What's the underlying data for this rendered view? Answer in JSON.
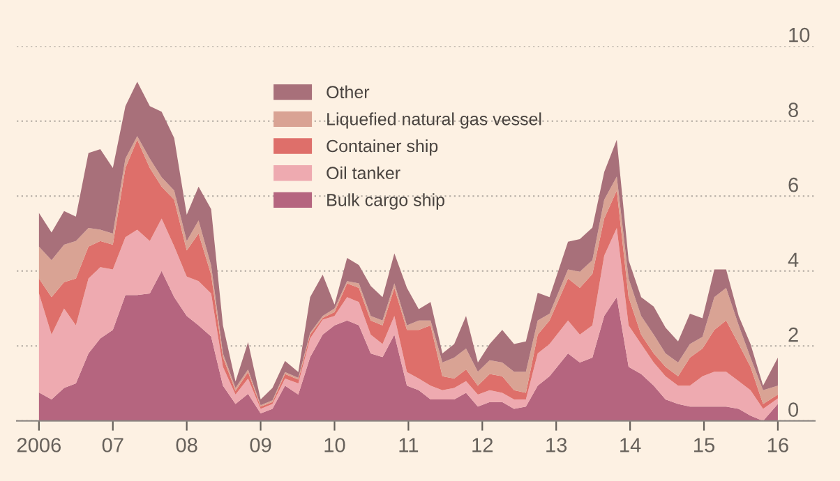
{
  "chart_data": {
    "type": "area",
    "stacked": true,
    "x": [
      2006.0,
      2006.17,
      2006.34,
      2006.5,
      2006.67,
      2006.83,
      2007.0,
      2007.17,
      2007.33,
      2007.5,
      2007.66,
      2007.83,
      2008.0,
      2008.16,
      2008.33,
      2008.49,
      2008.66,
      2008.83,
      2009.0,
      2009.16,
      2009.33,
      2009.51,
      2009.67,
      2009.84,
      2010.0,
      2010.17,
      2010.33,
      2010.49,
      2010.65,
      2010.81,
      2010.98,
      2011.14,
      2011.3,
      2011.46,
      2011.62,
      2011.78,
      2011.94,
      2012.1,
      2012.27,
      2012.43,
      2012.59,
      2012.75,
      2012.91,
      2013.16,
      2013.32,
      2013.49,
      2013.65,
      2013.82,
      2013.98,
      2014.15,
      2014.32,
      2014.48,
      2014.65,
      2014.81,
      2014.98,
      2015.14,
      2015.3,
      2015.47,
      2015.63,
      2015.8,
      2016.0
    ],
    "series": [
      {
        "name": "Bulk cargo ship",
        "color": "#b5657f",
        "values": [
          0.76,
          0.57,
          0.88,
          1.0,
          1.8,
          2.2,
          2.43,
          3.36,
          3.36,
          3.4,
          4.0,
          3.3,
          2.8,
          2.55,
          2.25,
          0.94,
          0.45,
          0.72,
          0.2,
          0.32,
          0.94,
          0.7,
          1.7,
          2.3,
          2.55,
          2.68,
          2.55,
          1.8,
          1.7,
          2.3,
          0.94,
          0.82,
          0.57,
          0.57,
          0.57,
          0.75,
          0.38,
          0.5,
          0.5,
          0.32,
          0.38,
          0.94,
          1.19,
          1.8,
          1.56,
          1.69,
          2.8,
          3.3,
          1.44,
          1.25,
          0.94,
          0.57,
          0.45,
          0.38,
          0.38,
          0.38,
          0.38,
          0.32,
          0.14,
          0.0,
          0.45
        ]
      },
      {
        "name": "Oil tanker",
        "color": "#eeaab0",
        "values": [
          2.64,
          1.73,
          2.12,
          1.55,
          2.0,
          1.9,
          1.61,
          1.54,
          1.74,
          1.4,
          1.4,
          1.36,
          1.05,
          1.18,
          1.15,
          0.5,
          0.25,
          0.41,
          0.12,
          0.13,
          0.19,
          0.3,
          0.5,
          0.4,
          0.25,
          0.62,
          0.62,
          0.5,
          0.35,
          0.5,
          0.36,
          0.31,
          0.37,
          0.25,
          0.31,
          0.31,
          0.32,
          0.32,
          0.25,
          0.25,
          0.19,
          0.86,
          0.86,
          0.88,
          0.74,
          0.86,
          1.61,
          1.85,
          1.11,
          0.8,
          0.62,
          0.62,
          0.49,
          0.56,
          0.81,
          0.93,
          0.93,
          0.74,
          0.68,
          0.32,
          0.15
        ]
      },
      {
        "name": "Container ship",
        "color": "#de6f6a",
        "values": [
          0.4,
          1.0,
          0.7,
          1.25,
          0.85,
          0.7,
          0.66,
          1.85,
          2.4,
          1.95,
          0.85,
          1.24,
          0.7,
          1.27,
          0.5,
          0.26,
          0.1,
          0.17,
          0.06,
          0.05,
          0.12,
          0.1,
          0.1,
          0.05,
          0.1,
          0.37,
          0.38,
          0.38,
          0.5,
          0.75,
          1.13,
          1.3,
          1.61,
          0.37,
          0.25,
          0.31,
          0.24,
          0.43,
          0.44,
          0.25,
          0.18,
          0.5,
          0.63,
          1.12,
          1.25,
          1.37,
          0.99,
          1.0,
          0.75,
          0.25,
          0.24,
          0.25,
          0.25,
          0.75,
          0.74,
          1.12,
          1.37,
          0.99,
          0.62,
          0.13,
          0.1
        ]
      },
      {
        "name": "Liquefied natural gas vessel",
        "color": "#d9a394",
        "values": [
          0.85,
          0.99,
          1.0,
          1.0,
          0.5,
          0.3,
          0.3,
          0.25,
          0.1,
          0.25,
          0.25,
          0.25,
          0.25,
          0.35,
          0.25,
          0.1,
          0.08,
          0.07,
          0.04,
          0.05,
          0.05,
          0.05,
          0.05,
          0.05,
          0.1,
          0.06,
          0.12,
          0.12,
          0.13,
          0.12,
          0.12,
          0.25,
          0.13,
          0.37,
          0.56,
          0.56,
          0.37,
          0.37,
          0.37,
          0.49,
          0.56,
          0.38,
          0.18,
          0.24,
          0.43,
          0.37,
          0.5,
          0.37,
          0.5,
          0.5,
          0.5,
          0.36,
          0.37,
          0.36,
          0.31,
          0.87,
          0.87,
          0.5,
          0.25,
          0.37,
          0.24
        ]
      },
      {
        "name": "Other",
        "color": "#a8707a",
        "values": [
          0.9,
          0.74,
          0.9,
          0.65,
          2.0,
          2.15,
          1.75,
          1.4,
          1.45,
          1.4,
          1.75,
          1.4,
          0.7,
          0.9,
          1.5,
          0.75,
          0.17,
          0.73,
          0.15,
          0.33,
          0.3,
          0.15,
          0.95,
          1.1,
          0.1,
          0.62,
          0.49,
          0.8,
          0.62,
          0.8,
          1.0,
          0.3,
          0.49,
          0.24,
          0.36,
          0.87,
          0.25,
          0.43,
          0.87,
          0.74,
          0.81,
          0.74,
          0.44,
          0.74,
          0.87,
          0.87,
          0.74,
          0.98,
          0.49,
          0.5,
          0.75,
          0.69,
          0.56,
          0.81,
          0.5,
          0.74,
          0.49,
          0.25,
          0.36,
          0.12,
          0.75
        ]
      }
    ],
    "xlim": [
      2005.7,
      2016.5
    ],
    "xticks": [
      {
        "value": 2006,
        "label": "2006"
      },
      {
        "value": 2007,
        "label": "07"
      },
      {
        "value": 2008,
        "label": "08"
      },
      {
        "value": 2009,
        "label": "09"
      },
      {
        "value": 2010,
        "label": "10"
      },
      {
        "value": 2011,
        "label": "11"
      },
      {
        "value": 2012,
        "label": "12"
      },
      {
        "value": 2013,
        "label": "13"
      },
      {
        "value": 2014,
        "label": "14"
      },
      {
        "value": 2015,
        "label": "15"
      },
      {
        "value": 2016,
        "label": "16"
      }
    ],
    "ylim": [
      0,
      10
    ],
    "yticks": [
      0,
      2,
      4,
      6,
      8,
      10
    ],
    "grid": "y",
    "legend": "top"
  }
}
